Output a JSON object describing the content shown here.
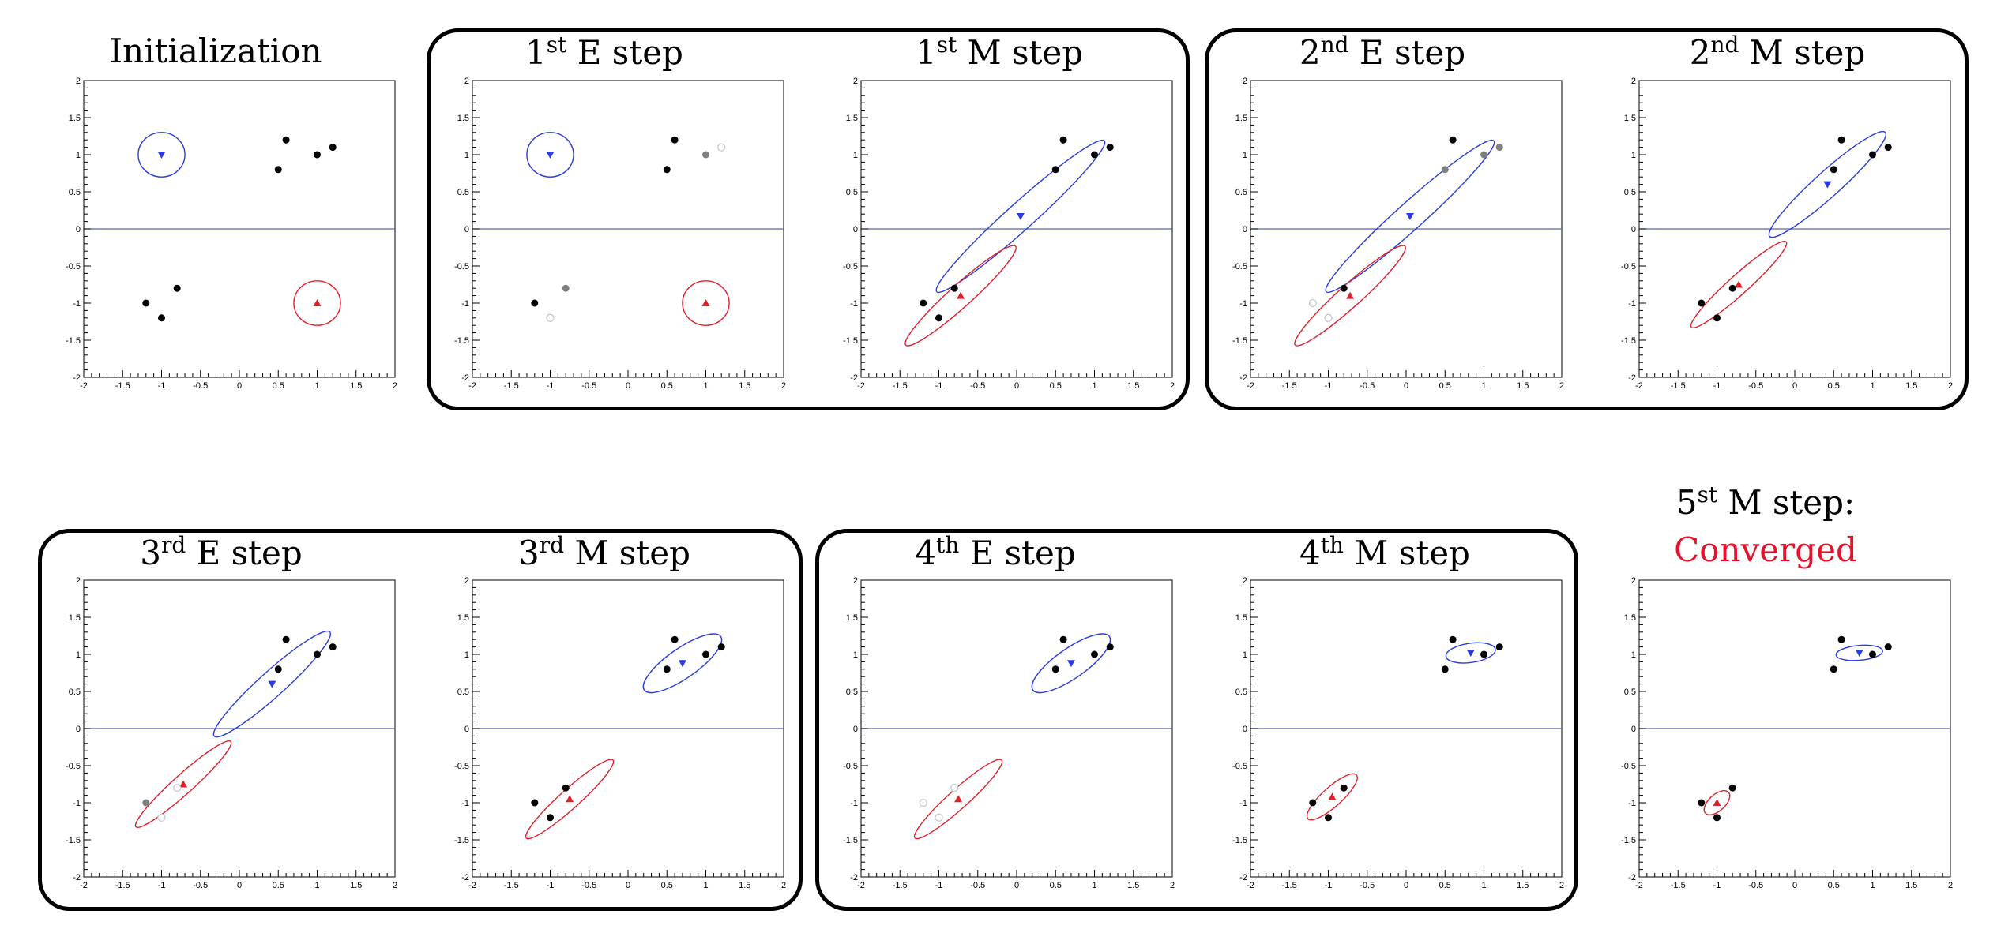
{
  "colors": {
    "blue": "#2a3be0",
    "red": "#e0202a",
    "axis_line": "#5566aa",
    "grey": "#808080",
    "light": "#c8c8c8"
  },
  "groups": [
    {
      "label": "iteration-1"
    },
    {
      "label": "iteration-2"
    },
    {
      "label": "iteration-3"
    },
    {
      "label": "iteration-4"
    }
  ],
  "extra_titles": {
    "converged": "Converged"
  },
  "panels": [
    {
      "id": "init",
      "title": {
        "pre": "Initialization",
        "sup": "",
        "post": ""
      },
      "chart_data": {
        "type": "scatter",
        "xlim": [
          -2,
          2
        ],
        "ylim": [
          -2,
          2
        ],
        "points": [
          {
            "x": 0.5,
            "y": 0.8,
            "shade": "black"
          },
          {
            "x": 0.6,
            "y": 1.2,
            "shade": "black"
          },
          {
            "x": 1.0,
            "y": 1.0,
            "shade": "black"
          },
          {
            "x": 1.2,
            "y": 1.1,
            "shade": "black"
          },
          {
            "x": -1.2,
            "y": -1.0,
            "shade": "black"
          },
          {
            "x": -1.0,
            "y": -1.2,
            "shade": "black"
          },
          {
            "x": -0.8,
            "y": -0.8,
            "shade": "black"
          }
        ],
        "components": [
          {
            "color": "blue",
            "marker": "down",
            "mean": [
              -1.0,
              1.0
            ],
            "rx": 0.3,
            "ry": 0.3,
            "angle": 0
          },
          {
            "color": "red",
            "marker": "up",
            "mean": [
              1.0,
              -1.0
            ],
            "rx": 0.3,
            "ry": 0.3,
            "angle": 0
          }
        ]
      }
    },
    {
      "id": "e1",
      "title": {
        "pre": "1",
        "sup": "st",
        "post": " E step"
      },
      "chart_data": {
        "type": "scatter",
        "xlim": [
          -2,
          2
        ],
        "ylim": [
          -2,
          2
        ],
        "points": [
          {
            "x": 0.5,
            "y": 0.8,
            "shade": "black"
          },
          {
            "x": 0.6,
            "y": 1.2,
            "shade": "black"
          },
          {
            "x": 1.0,
            "y": 1.0,
            "shade": "grey"
          },
          {
            "x": 1.2,
            "y": 1.1,
            "shade": "light"
          },
          {
            "x": -1.2,
            "y": -1.0,
            "shade": "black"
          },
          {
            "x": -1.0,
            "y": -1.2,
            "shade": "light"
          },
          {
            "x": -0.8,
            "y": -0.8,
            "shade": "grey"
          }
        ],
        "components": [
          {
            "color": "blue",
            "marker": "down",
            "mean": [
              -1.0,
              1.0
            ],
            "rx": 0.3,
            "ry": 0.3,
            "angle": 0
          },
          {
            "color": "red",
            "marker": "up",
            "mean": [
              1.0,
              -1.0
            ],
            "rx": 0.3,
            "ry": 0.3,
            "angle": 0
          }
        ]
      }
    },
    {
      "id": "m1",
      "title": {
        "pre": "1",
        "sup": "st",
        "post": " M step"
      },
      "chart_data": {
        "type": "scatter",
        "xlim": [
          -2,
          2
        ],
        "ylim": [
          -2,
          2
        ],
        "points": [
          {
            "x": 0.5,
            "y": 0.8,
            "shade": "black"
          },
          {
            "x": 0.6,
            "y": 1.2,
            "shade": "black"
          },
          {
            "x": 1.0,
            "y": 1.0,
            "shade": "black"
          },
          {
            "x": 1.2,
            "y": 1.1,
            "shade": "black"
          },
          {
            "x": -1.2,
            "y": -1.0,
            "shade": "black"
          },
          {
            "x": -1.0,
            "y": -1.2,
            "shade": "black"
          },
          {
            "x": -0.8,
            "y": -0.8,
            "shade": "black"
          }
        ],
        "components": [
          {
            "color": "blue",
            "marker": "down",
            "mean": [
              0.05,
              0.17
            ],
            "rx": 1.45,
            "ry": 0.18,
            "angle": 42
          },
          {
            "color": "red",
            "marker": "up",
            "mean": [
              -0.72,
              -0.9
            ],
            "rx": 0.95,
            "ry": 0.15,
            "angle": 42
          }
        ]
      }
    },
    {
      "id": "e2",
      "title": {
        "pre": "2",
        "sup": "nd",
        "post": " E step"
      },
      "chart_data": {
        "type": "scatter",
        "xlim": [
          -2,
          2
        ],
        "ylim": [
          -2,
          2
        ],
        "points": [
          {
            "x": 0.5,
            "y": 0.8,
            "shade": "grey"
          },
          {
            "x": 0.6,
            "y": 1.2,
            "shade": "black"
          },
          {
            "x": 1.0,
            "y": 1.0,
            "shade": "grey"
          },
          {
            "x": 1.2,
            "y": 1.1,
            "shade": "grey"
          },
          {
            "x": -1.2,
            "y": -1.0,
            "shade": "light"
          },
          {
            "x": -1.0,
            "y": -1.2,
            "shade": "light"
          },
          {
            "x": -0.8,
            "y": -0.8,
            "shade": "black"
          }
        ],
        "components": [
          {
            "color": "blue",
            "marker": "down",
            "mean": [
              0.05,
              0.17
            ],
            "rx": 1.45,
            "ry": 0.18,
            "angle": 42
          },
          {
            "color": "red",
            "marker": "up",
            "mean": [
              -0.72,
              -0.9
            ],
            "rx": 0.95,
            "ry": 0.15,
            "angle": 42
          }
        ]
      }
    },
    {
      "id": "m2",
      "title": {
        "pre": "2",
        "sup": "nd",
        "post": " M step"
      },
      "chart_data": {
        "type": "scatter",
        "xlim": [
          -2,
          2
        ],
        "ylim": [
          -2,
          2
        ],
        "points": [
          {
            "x": 0.5,
            "y": 0.8,
            "shade": "black"
          },
          {
            "x": 0.6,
            "y": 1.2,
            "shade": "black"
          },
          {
            "x": 1.0,
            "y": 1.0,
            "shade": "black"
          },
          {
            "x": 1.2,
            "y": 1.1,
            "shade": "black"
          },
          {
            "x": -1.2,
            "y": -1.0,
            "shade": "black"
          },
          {
            "x": -1.0,
            "y": -1.2,
            "shade": "black"
          },
          {
            "x": -0.8,
            "y": -0.8,
            "shade": "black"
          }
        ],
        "components": [
          {
            "color": "blue",
            "marker": "down",
            "mean": [
              0.42,
              0.6
            ],
            "rx": 1.0,
            "ry": 0.17,
            "angle": 42
          },
          {
            "color": "red",
            "marker": "up",
            "mean": [
              -0.72,
              -0.75
            ],
            "rx": 0.82,
            "ry": 0.13,
            "angle": 42
          }
        ]
      }
    },
    {
      "id": "e3",
      "title": {
        "pre": "3",
        "sup": "rd",
        "post": " E step"
      },
      "chart_data": {
        "type": "scatter",
        "xlim": [
          -2,
          2
        ],
        "ylim": [
          -2,
          2
        ],
        "points": [
          {
            "x": 0.5,
            "y": 0.8,
            "shade": "black"
          },
          {
            "x": 0.6,
            "y": 1.2,
            "shade": "black"
          },
          {
            "x": 1.0,
            "y": 1.0,
            "shade": "black"
          },
          {
            "x": 1.2,
            "y": 1.1,
            "shade": "black"
          },
          {
            "x": -1.2,
            "y": -1.0,
            "shade": "grey"
          },
          {
            "x": -1.0,
            "y": -1.2,
            "shade": "light"
          },
          {
            "x": -0.8,
            "y": -0.8,
            "shade": "light"
          }
        ],
        "components": [
          {
            "color": "blue",
            "marker": "down",
            "mean": [
              0.42,
              0.6
            ],
            "rx": 1.0,
            "ry": 0.17,
            "angle": 42
          },
          {
            "color": "red",
            "marker": "up",
            "mean": [
              -0.72,
              -0.75
            ],
            "rx": 0.82,
            "ry": 0.13,
            "angle": 42
          }
        ]
      }
    },
    {
      "id": "m3",
      "title": {
        "pre": "3",
        "sup": "rd",
        "post": " M step"
      },
      "chart_data": {
        "type": "scatter",
        "xlim": [
          -2,
          2
        ],
        "ylim": [
          -2,
          2
        ],
        "points": [
          {
            "x": 0.5,
            "y": 0.8,
            "shade": "black"
          },
          {
            "x": 0.6,
            "y": 1.2,
            "shade": "black"
          },
          {
            "x": 1.0,
            "y": 1.0,
            "shade": "black"
          },
          {
            "x": 1.2,
            "y": 1.1,
            "shade": "black"
          },
          {
            "x": -1.2,
            "y": -1.0,
            "shade": "black"
          },
          {
            "x": -1.0,
            "y": -1.2,
            "shade": "black"
          },
          {
            "x": -0.8,
            "y": -0.8,
            "shade": "black"
          }
        ],
        "components": [
          {
            "color": "blue",
            "marker": "down",
            "mean": [
              0.7,
              0.88
            ],
            "rx": 0.6,
            "ry": 0.2,
            "angle": 35
          },
          {
            "color": "red",
            "marker": "up",
            "mean": [
              -0.75,
              -0.95
            ],
            "rx": 0.75,
            "ry": 0.13,
            "angle": 42
          }
        ]
      }
    },
    {
      "id": "e4",
      "title": {
        "pre": "4",
        "sup": "th",
        "post": " E step"
      },
      "chart_data": {
        "type": "scatter",
        "xlim": [
          -2,
          2
        ],
        "ylim": [
          -2,
          2
        ],
        "points": [
          {
            "x": 0.5,
            "y": 0.8,
            "shade": "black"
          },
          {
            "x": 0.6,
            "y": 1.2,
            "shade": "black"
          },
          {
            "x": 1.0,
            "y": 1.0,
            "shade": "black"
          },
          {
            "x": 1.2,
            "y": 1.1,
            "shade": "black"
          },
          {
            "x": -1.2,
            "y": -1.0,
            "shade": "light"
          },
          {
            "x": -1.0,
            "y": -1.2,
            "shade": "light"
          },
          {
            "x": -0.8,
            "y": -0.8,
            "shade": "light"
          }
        ],
        "components": [
          {
            "color": "blue",
            "marker": "down",
            "mean": [
              0.7,
              0.88
            ],
            "rx": 0.6,
            "ry": 0.2,
            "angle": 35
          },
          {
            "color": "red",
            "marker": "up",
            "mean": [
              -0.75,
              -0.95
            ],
            "rx": 0.75,
            "ry": 0.13,
            "angle": 42
          }
        ]
      }
    },
    {
      "id": "m4",
      "title": {
        "pre": "4",
        "sup": "th",
        "post": " M step"
      },
      "chart_data": {
        "type": "scatter",
        "xlim": [
          -2,
          2
        ],
        "ylim": [
          -2,
          2
        ],
        "points": [
          {
            "x": 0.5,
            "y": 0.8,
            "shade": "black"
          },
          {
            "x": 0.6,
            "y": 1.2,
            "shade": "black"
          },
          {
            "x": 1.0,
            "y": 1.0,
            "shade": "black"
          },
          {
            "x": 1.2,
            "y": 1.1,
            "shade": "black"
          },
          {
            "x": -1.2,
            "y": -1.0,
            "shade": "black"
          },
          {
            "x": -1.0,
            "y": -1.2,
            "shade": "black"
          },
          {
            "x": -0.8,
            "y": -0.8,
            "shade": "black"
          }
        ],
        "components": [
          {
            "color": "blue",
            "marker": "down",
            "mean": [
              0.83,
              1.02
            ],
            "rx": 0.32,
            "ry": 0.13,
            "angle": 8
          },
          {
            "color": "red",
            "marker": "up",
            "mean": [
              -0.95,
              -0.92
            ],
            "rx": 0.42,
            "ry": 0.13,
            "angle": 42
          }
        ]
      }
    },
    {
      "id": "m5",
      "title": {
        "pre": "5",
        "sup": "st",
        "post": " M step:"
      },
      "chart_data": {
        "type": "scatter",
        "xlim": [
          -2,
          2
        ],
        "ylim": [
          -2,
          2
        ],
        "points": [
          {
            "x": 0.5,
            "y": 0.8,
            "shade": "black"
          },
          {
            "x": 0.6,
            "y": 1.2,
            "shade": "black"
          },
          {
            "x": 1.0,
            "y": 1.0,
            "shade": "black"
          },
          {
            "x": 1.2,
            "y": 1.1,
            "shade": "black"
          },
          {
            "x": -1.2,
            "y": -1.0,
            "shade": "black"
          },
          {
            "x": -1.0,
            "y": -1.2,
            "shade": "black"
          },
          {
            "x": -0.8,
            "y": -0.8,
            "shade": "black"
          }
        ],
        "components": [
          {
            "color": "blue",
            "marker": "down",
            "mean": [
              0.83,
              1.02
            ],
            "rx": 0.3,
            "ry": 0.1,
            "angle": 5
          },
          {
            "color": "red",
            "marker": "up",
            "mean": [
              -1.0,
              -1.0
            ],
            "rx": 0.2,
            "ry": 0.11,
            "angle": 42
          }
        ]
      }
    }
  ],
  "tick_labels": {
    "x": [
      "-2",
      "-1.5",
      "-1",
      "-0.5",
      "0",
      "0.5",
      "1",
      "1.5",
      "2"
    ],
    "y": [
      "-2",
      "-1.5",
      "-1",
      "-0.5",
      "0",
      "0.5",
      "1",
      "1.5",
      "2"
    ]
  }
}
